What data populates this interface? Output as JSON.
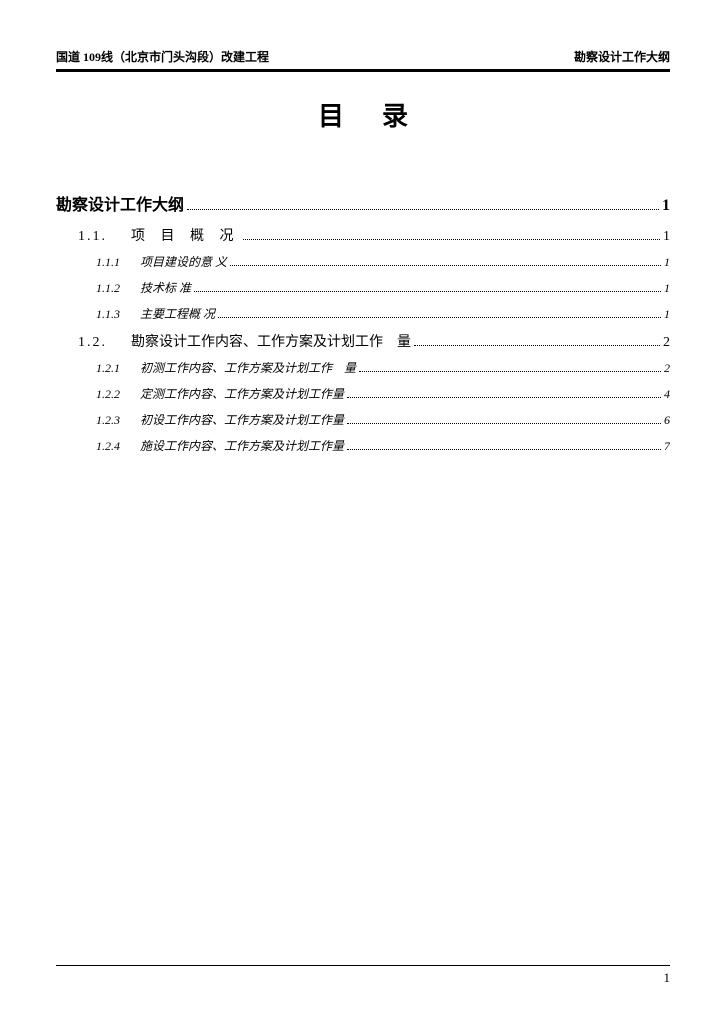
{
  "header": {
    "left": "国道 109线（北京市门头沟段）改建工程",
    "right": "勘察设计工作大纲"
  },
  "title": "目录",
  "toc": {
    "mainHeading": {
      "label": "勘察设计工作大纲",
      "page": "1"
    },
    "s11": {
      "num": "1.1.",
      "text": "项 目 概 况",
      "page": "1"
    },
    "s111": {
      "num": "1.1.1",
      "text": "项目建设的意 义",
      "page": "1"
    },
    "s112": {
      "num": "1.1.2",
      "text": "技术标 准",
      "page": "1"
    },
    "s113": {
      "num": "1.1.3",
      "text": "主要工程概 况",
      "page": "1"
    },
    "s12": {
      "num": "1.2.",
      "text": "勘察设计工作内容、工作方案及计划工作　量",
      "page": "2"
    },
    "s121": {
      "num": "1.2.1",
      "text": "初测工作内容、工作方案及计划工作　量",
      "page": "2"
    },
    "s122": {
      "num": "1.2.2",
      "text": "定测工作内容、工作方案及计划工作量",
      "page": "4"
    },
    "s123": {
      "num": "1.2.3",
      "text": "初设工作内容、工作方案及计划工作量",
      "page": "6"
    },
    "s124": {
      "num": "1.2.4",
      "text": "施设工作内容、工作方案及计划工作量",
      "page": "7"
    }
  },
  "footer": {
    "pageNumber": "1"
  },
  "colors": {
    "text": "#000000",
    "background": "#ffffff"
  }
}
